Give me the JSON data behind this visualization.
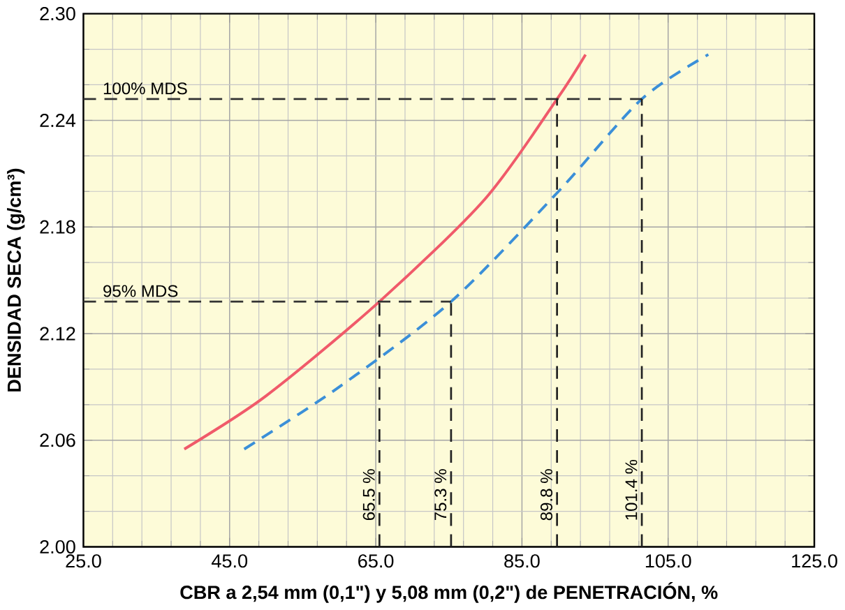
{
  "chart_data": {
    "type": "line",
    "xlabel": "CBR a 2,54 mm (0,1\") y 5,08 mm (0,2\") de PENETRACIÓN, %",
    "ylabel": "DENSIDAD SECA  (g/cm³)",
    "xlim": [
      25,
      125
    ],
    "ylim": [
      2.0,
      2.3
    ],
    "xticks": [
      {
        "value": 25,
        "label": "25.0"
      },
      {
        "value": 45,
        "label": "45.0"
      },
      {
        "value": 65,
        "label": "65.0"
      },
      {
        "value": 85,
        "label": "85.0"
      },
      {
        "value": 105,
        "label": "105.0"
      },
      {
        "value": 125,
        "label": "125.0"
      }
    ],
    "yticks": [
      {
        "value": 2.0,
        "label": "2.00"
      },
      {
        "value": 2.06,
        "label": "2.06"
      },
      {
        "value": 2.12,
        "label": "2.12"
      },
      {
        "value": 2.18,
        "label": "2.18"
      },
      {
        "value": 2.24,
        "label": "2.24"
      },
      {
        "value": 2.3,
        "label": "2.30"
      }
    ],
    "grid": true,
    "marker": "none",
    "series": [
      {
        "color": "#f05a6a",
        "line_style": "solid",
        "x": [
          38.8,
          50,
          65.5,
          80,
          89.8,
          93.7
        ],
        "values": [
          2.055,
          2.085,
          2.138,
          2.196,
          2.252,
          2.277
        ]
      },
      {
        "color": "#3b8fd8",
        "line_style": "dashed",
        "x": [
          47,
          60,
          75.3,
          90,
          101.4,
          110.5
        ],
        "values": [
          2.055,
          2.09,
          2.138,
          2.2,
          2.252,
          2.277
        ]
      }
    ],
    "ref_lines": [
      {
        "axis": "y",
        "value": 2.252,
        "label": "100% MDS",
        "line_style": "dashed",
        "color": "#333333"
      },
      {
        "axis": "y",
        "value": 2.138,
        "label": "95% MDS",
        "line_style": "dashed",
        "color": "#333333"
      },
      {
        "axis": "x",
        "value": 65.5,
        "label": "65.5 %",
        "line_style": "dashed",
        "color": "#222222"
      },
      {
        "axis": "x",
        "value": 75.3,
        "label": "75.3 %",
        "line_style": "dashed",
        "color": "#222222"
      },
      {
        "axis": "x",
        "value": 89.8,
        "label": "89.8 %",
        "line_style": "dashed",
        "color": "#222222"
      },
      {
        "axis": "x",
        "value": 101.4,
        "label": "101.4 %",
        "line_style": "dashed",
        "color": "#222222"
      }
    ]
  }
}
